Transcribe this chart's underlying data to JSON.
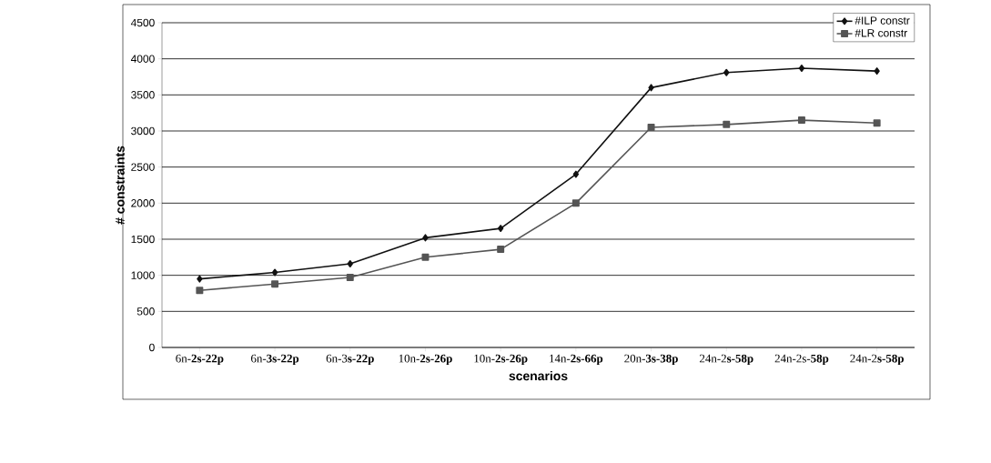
{
  "chart_data": {
    "type": "line",
    "xlabel": "scenarios",
    "ylabel": "# constraints",
    "categories": [
      "6n-**2s-22p**",
      "6n-**3s-22p**",
      "6n-3**s-22p**",
      "10n-**2s-26p**",
      "10n-**2s-26p**",
      "14n-**2s-66p**",
      "20n-**3s-38p**",
      "24n-2**s-58p**",
      "24n-2s-**58p**",
      "24n-2**s-58p**"
    ],
    "series": [
      {
        "name": "#ILP constr",
        "color": "#111111",
        "marker": "diamond",
        "values": [
          950,
          1040,
          1160,
          1520,
          1650,
          2400,
          3600,
          3810,
          3870,
          3830
        ]
      },
      {
        "name": "#LR constr",
        "color": "#555555",
        "marker": "square",
        "values": [
          790,
          880,
          970,
          1250,
          1360,
          2000,
          3050,
          3090,
          3150,
          3110
        ]
      }
    ],
    "ylim": [
      0,
      4500
    ],
    "yticks": [
      0,
      500,
      1000,
      1500,
      2000,
      2500,
      3000,
      3500,
      4000,
      4500
    ],
    "grid": "y",
    "legend": "top right",
    "line_style": "solid"
  }
}
